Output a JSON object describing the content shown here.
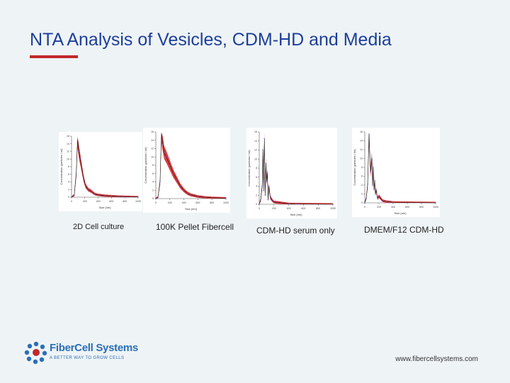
{
  "slide": {
    "title": "NTA Analysis of Vesicles, CDM-HD and Media",
    "footer_url": "www.fibercellsystems.com",
    "accent_color": "#c0282d",
    "title_color": "#1d3f9a"
  },
  "logo": {
    "name": "FiberCell Systems",
    "tagline": "A BETTER WAY TO GROW CELLS"
  },
  "chart_data": [
    {
      "type": "line",
      "caption": "2D Cell culture",
      "xlabel": "Size (nm)",
      "ylabel": "Concentration (particles / ml)",
      "xlim": [
        0,
        1000
      ],
      "ylim": [
        0,
        16
      ],
      "x_ticks": [
        0,
        200,
        400,
        600,
        800,
        1000
      ],
      "y_ticks": [
        0,
        2,
        4,
        6,
        8,
        10,
        12,
        14,
        16
      ],
      "x": [
        0,
        40,
        70,
        90,
        110,
        130,
        150,
        180,
        210,
        250,
        300,
        350,
        400,
        500,
        600,
        700,
        800,
        900,
        1000
      ],
      "values": [
        0,
        0.5,
        6,
        15,
        12,
        10,
        8,
        5,
        3,
        2,
        1.5,
        0.8,
        0.6,
        0.4,
        0.3,
        0.2,
        0.15,
        0.1,
        0.05
      ]
    },
    {
      "type": "line",
      "caption": "100K Pellet Fibercell",
      "xlabel": "Size (nm)",
      "ylabel": "Concentration (particles / ml)",
      "xlim": [
        0,
        1000
      ],
      "ylim": [
        0,
        16
      ],
      "x_ticks": [
        0,
        200,
        400,
        600,
        800,
        1000
      ],
      "y_ticks": [
        0,
        2,
        4,
        6,
        8,
        10,
        12,
        14,
        16
      ],
      "x": [
        0,
        30,
        60,
        80,
        100,
        120,
        150,
        200,
        250,
        300,
        350,
        400,
        450,
        500,
        600,
        700,
        800,
        1000
      ],
      "values": [
        0,
        0.3,
        4,
        15.5,
        13,
        11,
        10,
        8,
        6,
        4.5,
        3,
        2,
        1.3,
        0.9,
        0.5,
        0.3,
        0.2,
        0.1
      ]
    },
    {
      "type": "line",
      "caption": "CDM-HD serum only",
      "xlabel": "Size (nm)",
      "ylabel": "Concentration (particles / ml)",
      "xlim": [
        0,
        1000
      ],
      "ylim": [
        0,
        16
      ],
      "x_ticks": [
        0,
        200,
        400,
        600,
        800,
        1000
      ],
      "y_ticks": [
        0,
        2,
        4,
        6,
        8,
        10,
        12,
        14,
        16
      ],
      "x": [
        0,
        20,
        40,
        50,
        60,
        70,
        80,
        90,
        100,
        110,
        120,
        130,
        150,
        180,
        200,
        250,
        300,
        400,
        500,
        1000
      ],
      "values": [
        0,
        1,
        4,
        12,
        3,
        14.5,
        2,
        9,
        5,
        7,
        1,
        4,
        1.5,
        0.8,
        0.5,
        0.4,
        0.3,
        0.1,
        0.05,
        0
      ]
    },
    {
      "type": "line",
      "caption": "DMEM/F12 CDM-HD",
      "xlabel": "Size (nm)",
      "ylabel": "Concentration (particles / ml)",
      "xlim": [
        0,
        1000
      ],
      "ylim": [
        0,
        16
      ],
      "x_ticks": [
        0,
        200,
        400,
        600,
        800,
        1000
      ],
      "y_ticks": [
        0,
        2,
        4,
        6,
        8,
        10,
        12,
        14,
        16
      ],
      "x": [
        0,
        20,
        40,
        60,
        80,
        100,
        110,
        120,
        130,
        140,
        150,
        160,
        180,
        200,
        250,
        300,
        400,
        1000
      ],
      "values": [
        0,
        1,
        4,
        15.5,
        7,
        10,
        4,
        8,
        3,
        5,
        2,
        3,
        1,
        1.5,
        0.5,
        0.3,
        0.1,
        0
      ]
    }
  ]
}
